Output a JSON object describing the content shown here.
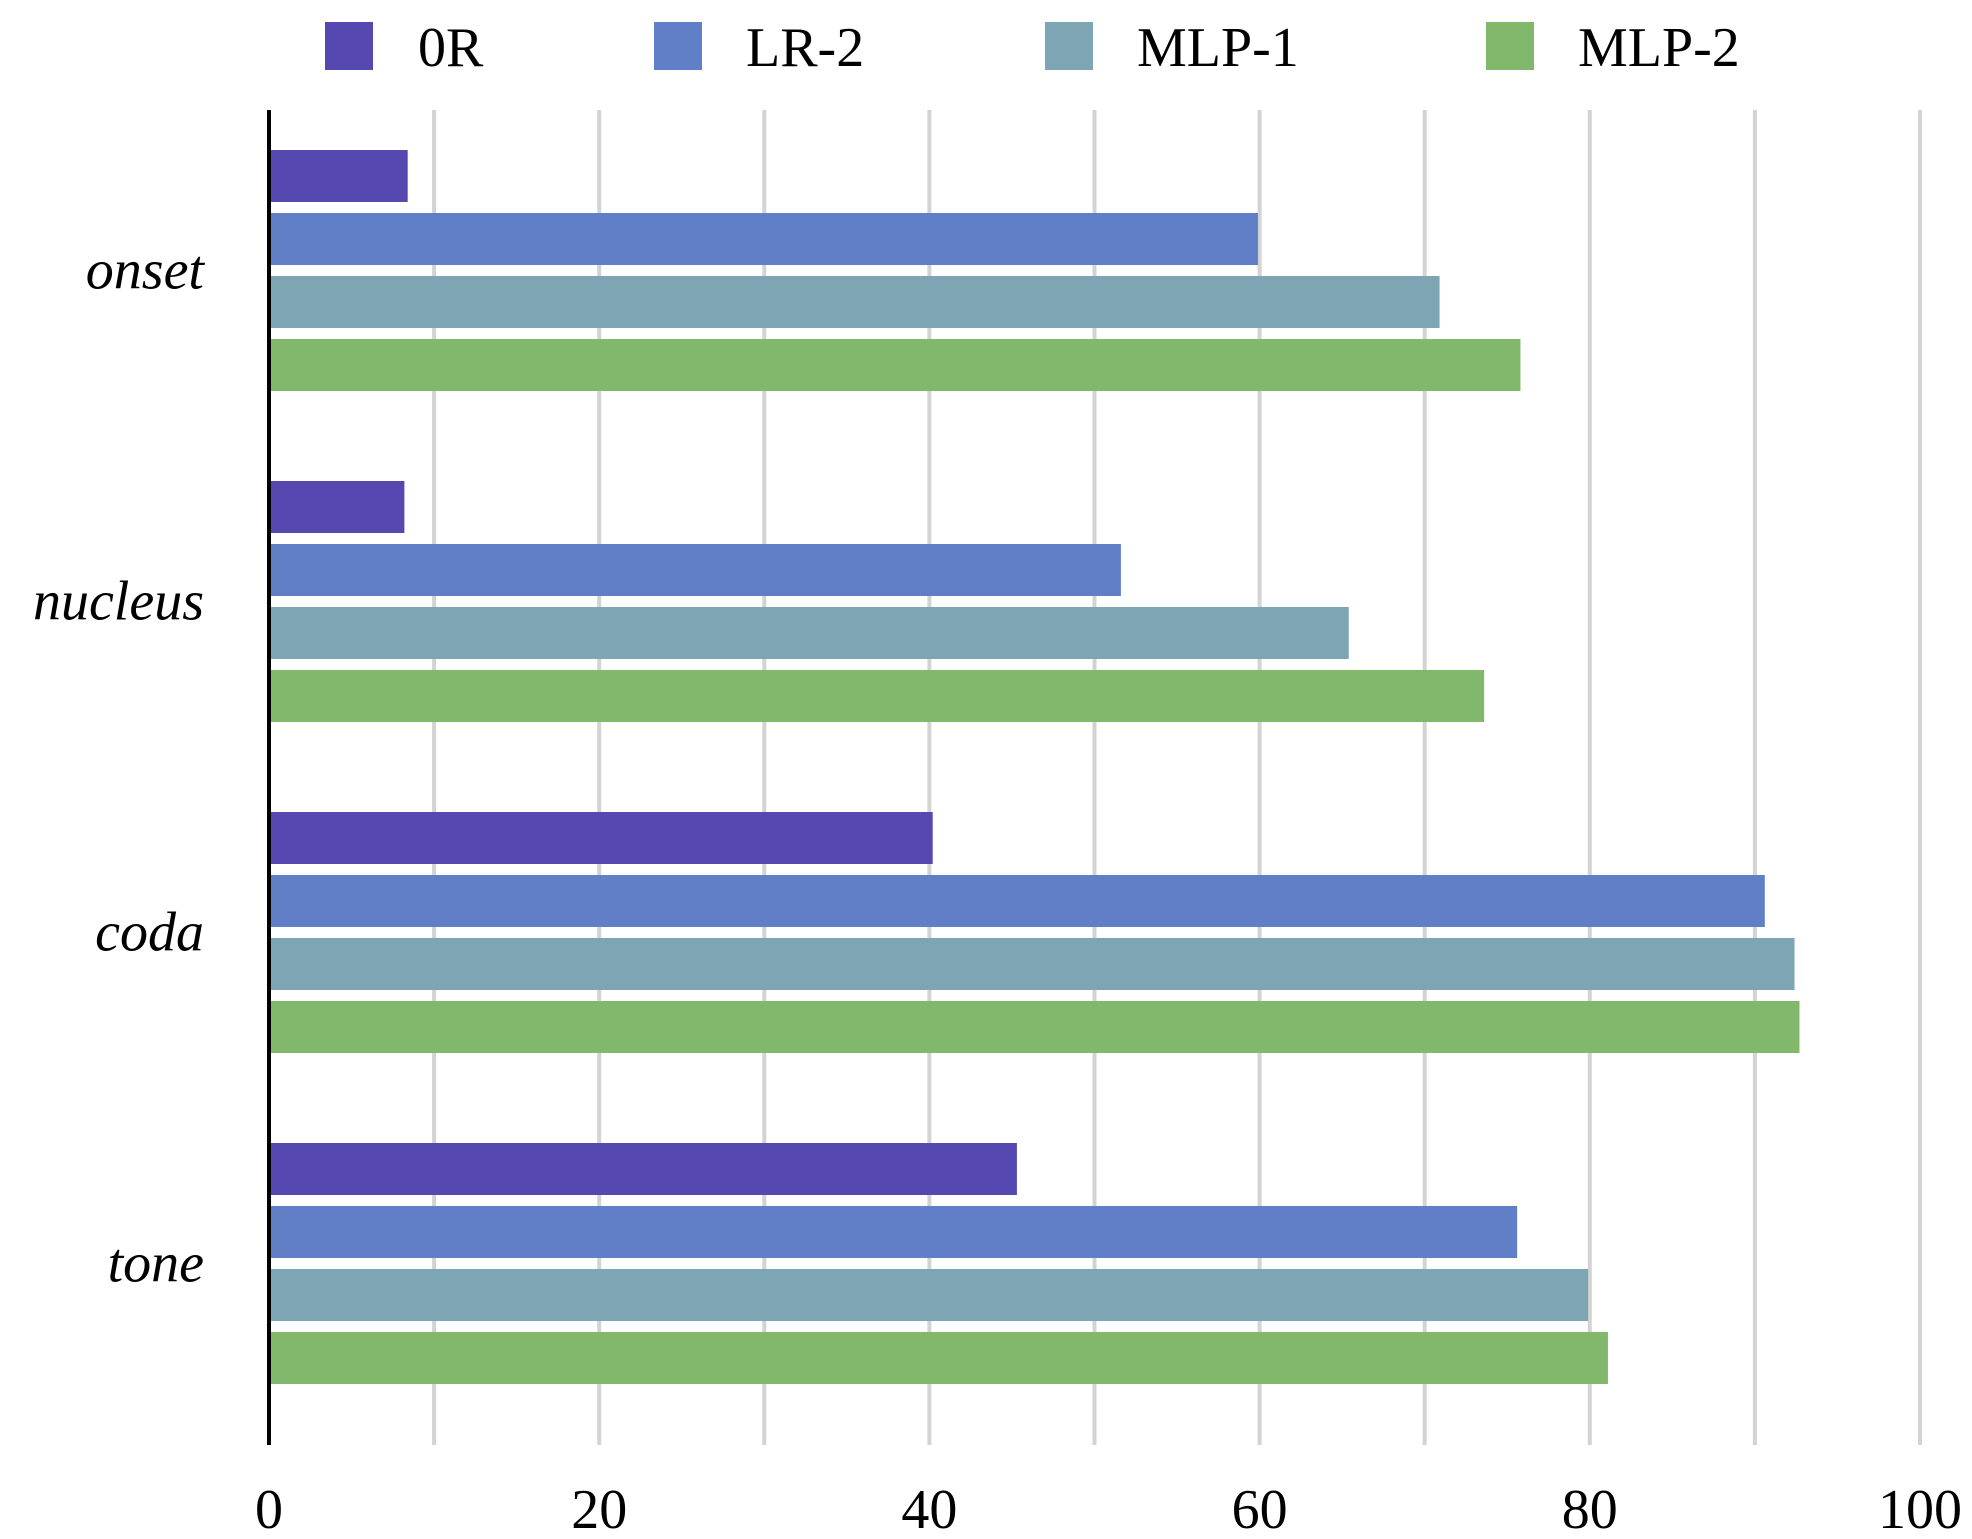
{
  "chart_data": {
    "type": "bar",
    "orientation": "horizontal",
    "title": "",
    "xlabel": "",
    "ylabel": "",
    "categories": [
      "onset",
      "nucleus",
      "coda",
      "tone"
    ],
    "series": [
      {
        "name": "0R",
        "color": "#5548b0",
        "values": [
          8.4,
          8.2,
          40.2,
          45.3
        ]
      },
      {
        "name": "LR-2",
        "color": "#607fc6",
        "values": [
          59.9,
          51.6,
          90.6,
          75.6
        ]
      },
      {
        "name": "MLP-1",
        "color": "#7ea5b4",
        "values": [
          70.9,
          65.4,
          92.4,
          79.9
        ]
      },
      {
        "name": "MLP-2",
        "color": "#82b86c",
        "values": [
          75.8,
          73.6,
          92.7,
          81.1
        ]
      }
    ],
    "xlim": [
      0,
      100
    ],
    "x_ticks": [
      0,
      20,
      40,
      60,
      80,
      100
    ],
    "x_tick_labels": [
      "0",
      "20",
      "40",
      "60",
      "80",
      "100"
    ],
    "x_gridlines_every": 10,
    "grid": true,
    "legend_position": "top",
    "gridline_color": "#d3d3d3",
    "axis_color": "#000000"
  }
}
